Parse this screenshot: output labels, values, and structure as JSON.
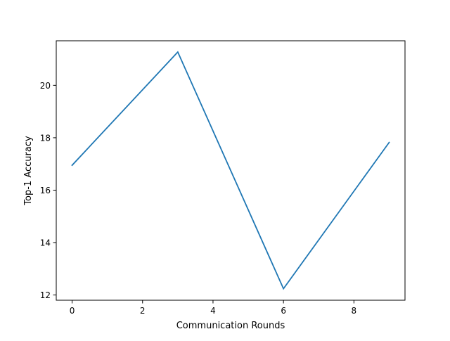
{
  "chart_data": {
    "type": "line",
    "title": "",
    "xlabel": "Communication Rounds",
    "ylabel": "Top-1 Accuracy",
    "xlim": [
      -0.45,
      9.45
    ],
    "ylim": [
      11.8,
      21.7
    ],
    "xticks": [
      0,
      2,
      4,
      6,
      8
    ],
    "yticks": [
      12,
      14,
      16,
      18,
      20
    ],
    "xtick_labels": [
      "0",
      "2",
      "4",
      "6",
      "8"
    ],
    "ytick_labels": [
      "12",
      "14",
      "16",
      "18",
      "20"
    ],
    "grid": false,
    "legend": "none",
    "series": [
      {
        "x": [
          0,
          3,
          6,
          9
        ],
        "values": [
          16.95,
          21.27,
          12.24,
          17.82
        ],
        "color": "#1f77b4"
      }
    ]
  }
}
